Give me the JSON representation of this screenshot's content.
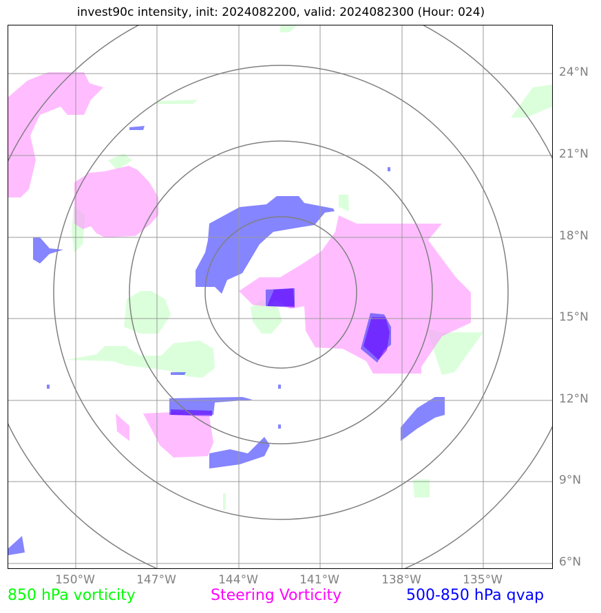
{
  "title": "invest90c intensity, init: 2024082200, valid: 2024082300 (Hour: 024)",
  "lat_labels": [
    "24°N",
    "21°N",
    "18°N",
    "15°N",
    "12°N",
    "9°N",
    "6°N"
  ],
  "lon_labels": [
    "150°W",
    "147°W",
    "144°W",
    "141°W",
    "138°W",
    "135°W"
  ],
  "legend": {
    "vorticity_850": {
      "label": "850 hPa vorticity",
      "color": "#00ff00"
    },
    "steering_vorticity": {
      "label": "Steering Vorticity",
      "color": "#ff00ff"
    },
    "qvap": {
      "label": "500-850 hPa qvap",
      "color": "#0000ff"
    }
  },
  "map": {
    "lat_range": [
      5.8,
      26.0
    ],
    "lon_range": [
      -152.5,
      -132.6
    ],
    "gridlines": true,
    "gridline_color": "#999999",
    "range_rings": 4,
    "ring_color": "#7f7f7f",
    "fill_colors": {
      "vorticity_850": "#ccffcc",
      "steering_vorticity": "#ff99ff",
      "qvap": "#3333ff",
      "qvap_strong": "#6600ff"
    }
  }
}
